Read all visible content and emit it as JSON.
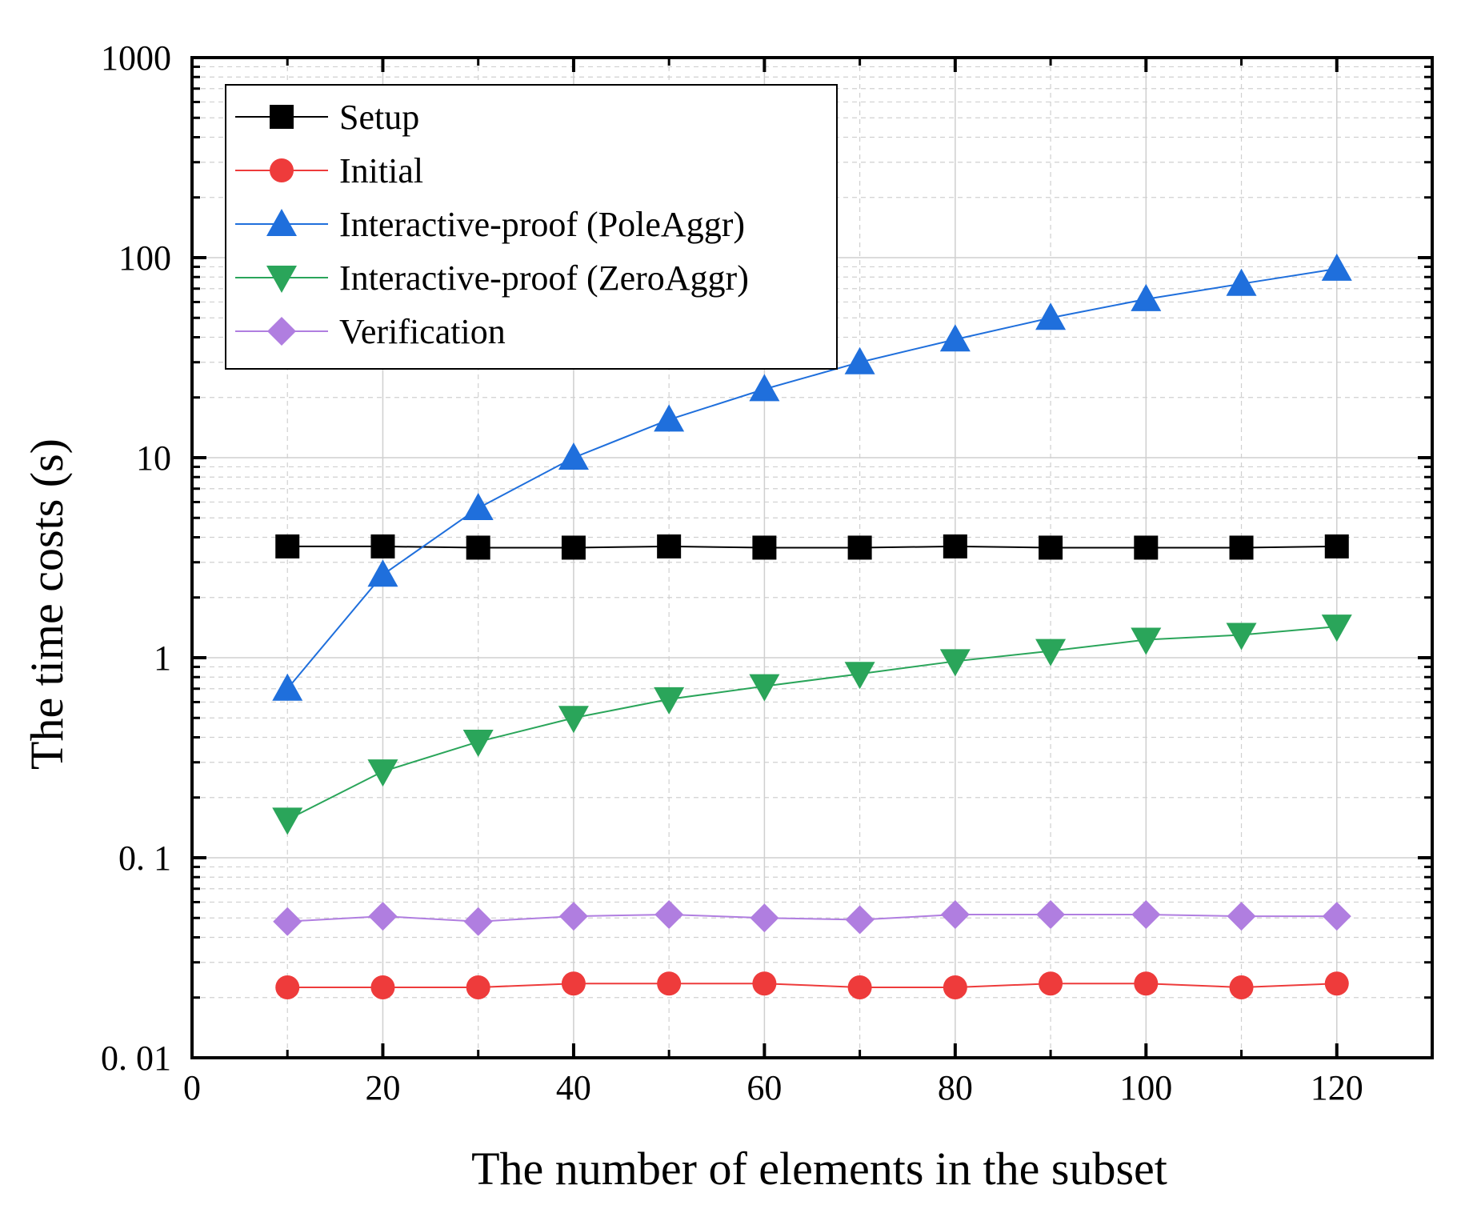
{
  "chart_data": {
    "type": "line",
    "title": "",
    "xlabel": "The number of elements in the subset",
    "ylabel": "The time costs (s)",
    "xlim": [
      0,
      130
    ],
    "ylim": [
      0.01,
      1000
    ],
    "yscale": "log",
    "grid": true,
    "legend_position": "top-left",
    "x_ticks": [
      {
        "value": 0,
        "label": "0"
      },
      {
        "value": 20,
        "label": "20"
      },
      {
        "value": 40,
        "label": "40"
      },
      {
        "value": 60,
        "label": "60"
      },
      {
        "value": 80,
        "label": "80"
      },
      {
        "value": 100,
        "label": "100"
      },
      {
        "value": 120,
        "label": "120"
      }
    ],
    "y_ticks": [
      {
        "value": 0.01,
        "label": "0. 01"
      },
      {
        "value": 0.1,
        "label": "0. 1"
      },
      {
        "value": 1,
        "label": "1"
      },
      {
        "value": 10,
        "label": "10"
      },
      {
        "value": 100,
        "label": "100"
      },
      {
        "value": 1000,
        "label": "1000"
      }
    ],
    "x": [
      10,
      20,
      30,
      40,
      50,
      60,
      70,
      80,
      90,
      100,
      110,
      120
    ],
    "series": [
      {
        "name": "Setup",
        "color": "#000000",
        "marker": "square",
        "values": [
          3.6,
          3.6,
          3.55,
          3.55,
          3.6,
          3.55,
          3.55,
          3.6,
          3.55,
          3.55,
          3.55,
          3.6
        ]
      },
      {
        "name": "Initial",
        "color": "#ee3b3b",
        "marker": "circle",
        "values": [
          0.0225,
          0.0225,
          0.0225,
          0.0235,
          0.0235,
          0.0235,
          0.0225,
          0.0225,
          0.0235,
          0.0235,
          0.0225,
          0.0235
        ]
      },
      {
        "name": "Interactive-proof (PoleAggr)",
        "color": "#1f6fdc",
        "marker": "triangle-up",
        "values": [
          0.7,
          2.6,
          5.6,
          10,
          15.5,
          22,
          30,
          39,
          50,
          62,
          74,
          88
        ]
      },
      {
        "name": "Interactive-proof (ZeroAggr)",
        "color": "#2aa55a",
        "marker": "triangle-down",
        "values": [
          0.155,
          0.27,
          0.38,
          0.5,
          0.62,
          0.72,
          0.83,
          0.96,
          1.08,
          1.23,
          1.3,
          1.43
        ]
      },
      {
        "name": "Verification",
        "color": "#b07ee0",
        "marker": "diamond",
        "values": [
          0.048,
          0.051,
          0.048,
          0.051,
          0.052,
          0.05,
          0.049,
          0.052,
          0.052,
          0.052,
          0.051,
          0.051
        ]
      }
    ]
  }
}
